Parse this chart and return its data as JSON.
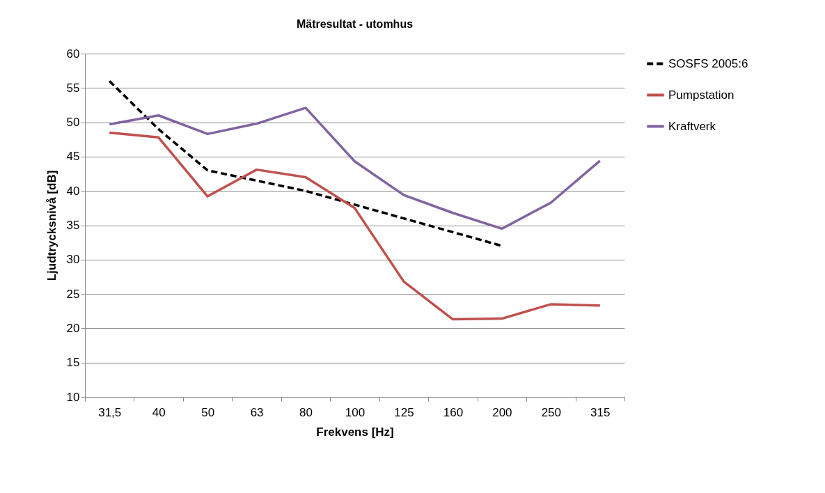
{
  "chart_data": {
    "type": "line",
    "title": "Mätresultat - utomhus",
    "xlabel": "Frekvens [Hz]",
    "ylabel": "Ljudtrycksnivå [dB]",
    "categories": [
      "31,5",
      "40",
      "50",
      "63",
      "80",
      "100",
      "125",
      "160",
      "200",
      "250",
      "315"
    ],
    "series": [
      {
        "name": "SOSFS 2005:6",
        "color": "#000000",
        "line_style": "dashed",
        "values": [
          56,
          49,
          43,
          41.5,
          40,
          38,
          36,
          34,
          32,
          null,
          null
        ]
      },
      {
        "name": "Pumpstation",
        "color": "#c0504d",
        "line_style": "solid",
        "values": [
          48.5,
          47.8,
          39.2,
          43.1,
          42,
          37.5,
          26.8,
          21.3,
          21.4,
          23.5,
          23.3
        ]
      },
      {
        "name": "Kraftverk",
        "color": "#8064a2",
        "line_style": "solid",
        "values": [
          49.7,
          51,
          48.3,
          49.8,
          52.1,
          44.3,
          39.4,
          36.8,
          34.5,
          38.3,
          44.4
        ]
      }
    ],
    "ylim": [
      10,
      60
    ],
    "yticks": [
      10,
      15,
      20,
      25,
      30,
      35,
      40,
      45,
      50,
      55,
      60
    ],
    "grid": "y",
    "legend": "right",
    "marker": "none"
  }
}
